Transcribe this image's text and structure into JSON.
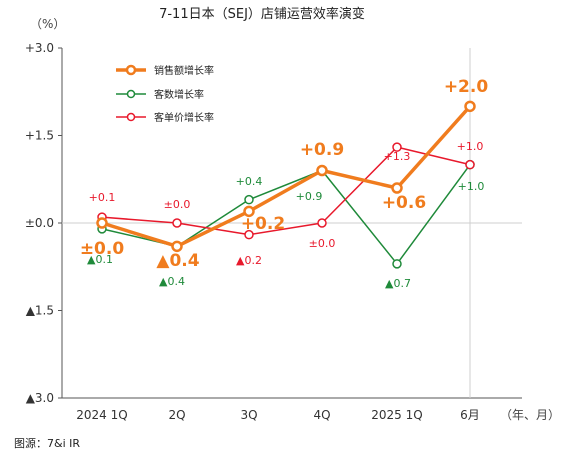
{
  "chart_data": {
    "type": "line",
    "title": "7-11日本（SEJ）店铺运营效率演变",
    "yunit": "（%）",
    "xunit": "（年、月）",
    "source": "图源：7&i IR",
    "ylim": [
      -3.0,
      3.0
    ],
    "yticks": [
      {
        "value": 3.0,
        "label": "+3.0"
      },
      {
        "value": 1.5,
        "label": "+1.5"
      },
      {
        "value": 0.0,
        "label": "±0.0"
      },
      {
        "value": -1.5,
        "label": "▲1.5"
      },
      {
        "value": -3.0,
        "label": "▲3.0"
      }
    ],
    "categories": [
      "2024 1Q",
      "2Q",
      "3Q",
      "4Q",
      "2025 1Q",
      "6月"
    ],
    "series": [
      {
        "name": "销售额增长率",
        "color": "#f07c1e",
        "width": 3.5,
        "radius": 4.5,
        "values": [
          0.0,
          -0.4,
          0.2,
          0.9,
          0.6,
          2.0
        ],
        "labels": [
          "±0.0",
          "▲0.4",
          "+0.2",
          "+0.9",
          "+0.6",
          "+2.0"
        ],
        "label_color": "#f07c1e"
      },
      {
        "name": "客数增长率",
        "color": "#1f8a3a",
        "width": 1.5,
        "radius": 4,
        "values": [
          -0.1,
          -0.4,
          0.4,
          0.9,
          -0.7,
          1.0
        ],
        "labels": [
          "▲0.1",
          "▲0.4",
          "+0.4",
          "+0.9",
          "▲0.7",
          "+1.0"
        ],
        "label_color": "#1f8a3a"
      },
      {
        "name": "客单价增长率",
        "color": "#e8192c",
        "width": 1.5,
        "radius": 4,
        "values": [
          0.1,
          0.0,
          -0.2,
          0.0,
          1.3,
          1.0
        ],
        "labels": [
          "+0.1",
          "±0.0",
          "▲0.2",
          "±0.0",
          "+1.3",
          "+1.0"
        ],
        "label_color": "#e8192c"
      }
    ]
  }
}
